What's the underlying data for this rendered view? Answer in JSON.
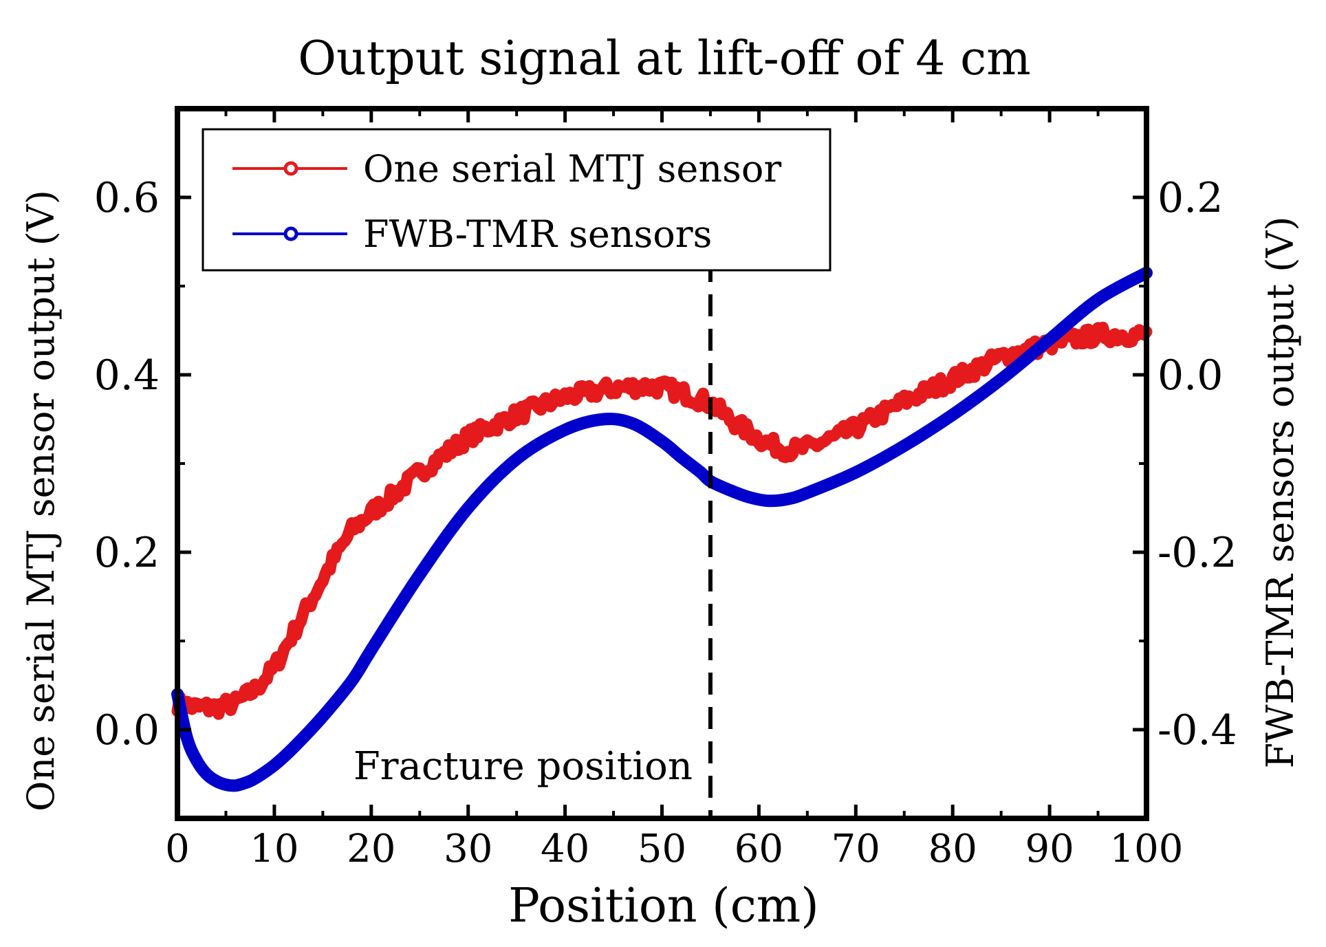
{
  "chart_data": {
    "type": "line",
    "title": "Output signal at lift-off of 4 cm",
    "xlabel": "Position (cm)",
    "ylabel": "One serial MTJ sensor output (V)",
    "y2label": "FWB-TMR sensors output (V)",
    "xlim": [
      0,
      100
    ],
    "ylim": [
      -0.1,
      0.7
    ],
    "y2lim": [
      -0.5,
      0.3
    ],
    "x_ticks": [
      0,
      10,
      20,
      30,
      40,
      50,
      60,
      70,
      80,
      90,
      100
    ],
    "y_ticks": [
      0.0,
      0.2,
      0.4,
      0.6
    ],
    "y2_ticks": [
      -0.4,
      -0.2,
      0.0,
      0.2
    ],
    "x_tick_labels": [
      "0",
      "10",
      "20",
      "30",
      "40",
      "50",
      "60",
      "70",
      "80",
      "90",
      "100"
    ],
    "y_tick_labels": [
      "0.0",
      "0.2",
      "0.4",
      "0.6"
    ],
    "y2_tick_labels": [
      "-0.4",
      "-0.2",
      "0.0",
      "0.2"
    ],
    "legend_position": "top-left",
    "series": [
      {
        "name": "One serial MTJ sensor",
        "axis": "left",
        "color": "#e41a1c",
        "x": [
          0,
          2,
          4,
          6,
          8,
          10,
          12,
          14,
          16,
          18,
          20,
          22,
          25,
          30,
          35,
          40,
          45,
          48,
          50,
          52,
          54,
          55,
          57,
          59,
          61,
          63,
          65,
          68,
          70,
          75,
          80,
          85,
          90,
          95,
          100
        ],
        "values": [
          0.03,
          0.025,
          0.025,
          0.03,
          0.045,
          0.07,
          0.11,
          0.15,
          0.19,
          0.225,
          0.245,
          0.262,
          0.29,
          0.33,
          0.355,
          0.375,
          0.385,
          0.387,
          0.386,
          0.38,
          0.372,
          0.368,
          0.35,
          0.335,
          0.322,
          0.315,
          0.318,
          0.33,
          0.34,
          0.37,
          0.395,
          0.42,
          0.435,
          0.445,
          0.445
        ]
      },
      {
        "name": "FWB-TMR sensors",
        "axis": "right",
        "color": "#0000cc",
        "x": [
          0,
          1,
          2,
          3,
          4,
          5,
          6,
          7,
          8,
          10,
          12,
          15,
          18,
          20,
          25,
          30,
          35,
          40,
          44,
          47,
          50,
          52,
          54,
          55,
          57,
          59,
          61,
          63,
          65,
          70,
          75,
          80,
          85,
          90,
          95,
          100
        ],
        "values": [
          -0.36,
          -0.41,
          -0.435,
          -0.45,
          -0.458,
          -0.462,
          -0.463,
          -0.46,
          -0.455,
          -0.44,
          -0.42,
          -0.385,
          -0.345,
          -0.31,
          -0.225,
          -0.15,
          -0.095,
          -0.062,
          -0.05,
          -0.055,
          -0.075,
          -0.093,
          -0.11,
          -0.12,
          -0.13,
          -0.138,
          -0.142,
          -0.14,
          -0.133,
          -0.11,
          -0.08,
          -0.045,
          -0.005,
          0.04,
          0.085,
          0.115
        ]
      }
    ],
    "annotations": [
      {
        "type": "vline",
        "x": 55,
        "style": "dashed"
      },
      {
        "type": "text",
        "text": "Fracture position"
      }
    ]
  }
}
